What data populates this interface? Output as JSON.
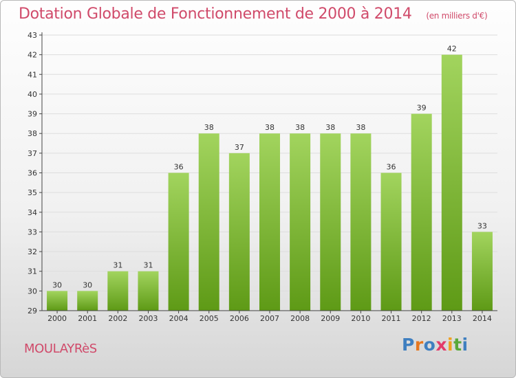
{
  "header": {
    "title": "Dotation Globale de Fonctionnement de 2000 à 2014",
    "subtitle": "(en milliers d'€)"
  },
  "footer": {
    "town": "MOULAYRèS",
    "logo_letters": [
      "P",
      "r",
      "o",
      "x",
      "i",
      "t",
      "i"
    ]
  },
  "colors": {
    "title": "#d04a6a",
    "bar_top": "#a2d45e",
    "bar_bottom": "#5e9a16",
    "axis": "#444444",
    "grid": "#dddddd"
  },
  "chart_data": {
    "type": "bar",
    "title": "Dotation Globale de Fonctionnement de 2000 à 2014",
    "subtitle": "(en milliers d'€)",
    "xlabel": "",
    "ylabel": "",
    "categories": [
      "2000",
      "2001",
      "2002",
      "2003",
      "2004",
      "2005",
      "2006",
      "2007",
      "2008",
      "2009",
      "2010",
      "2011",
      "2012",
      "2013",
      "2014"
    ],
    "values": [
      30,
      30,
      31,
      31,
      36,
      38,
      37,
      38,
      38,
      38,
      38,
      36,
      39,
      42,
      33
    ],
    "ylim": [
      29,
      43
    ],
    "yticks": [
      29,
      30,
      31,
      32,
      33,
      34,
      35,
      36,
      37,
      38,
      39,
      40,
      41,
      42,
      43
    ],
    "grid": true,
    "data_labels": true
  }
}
